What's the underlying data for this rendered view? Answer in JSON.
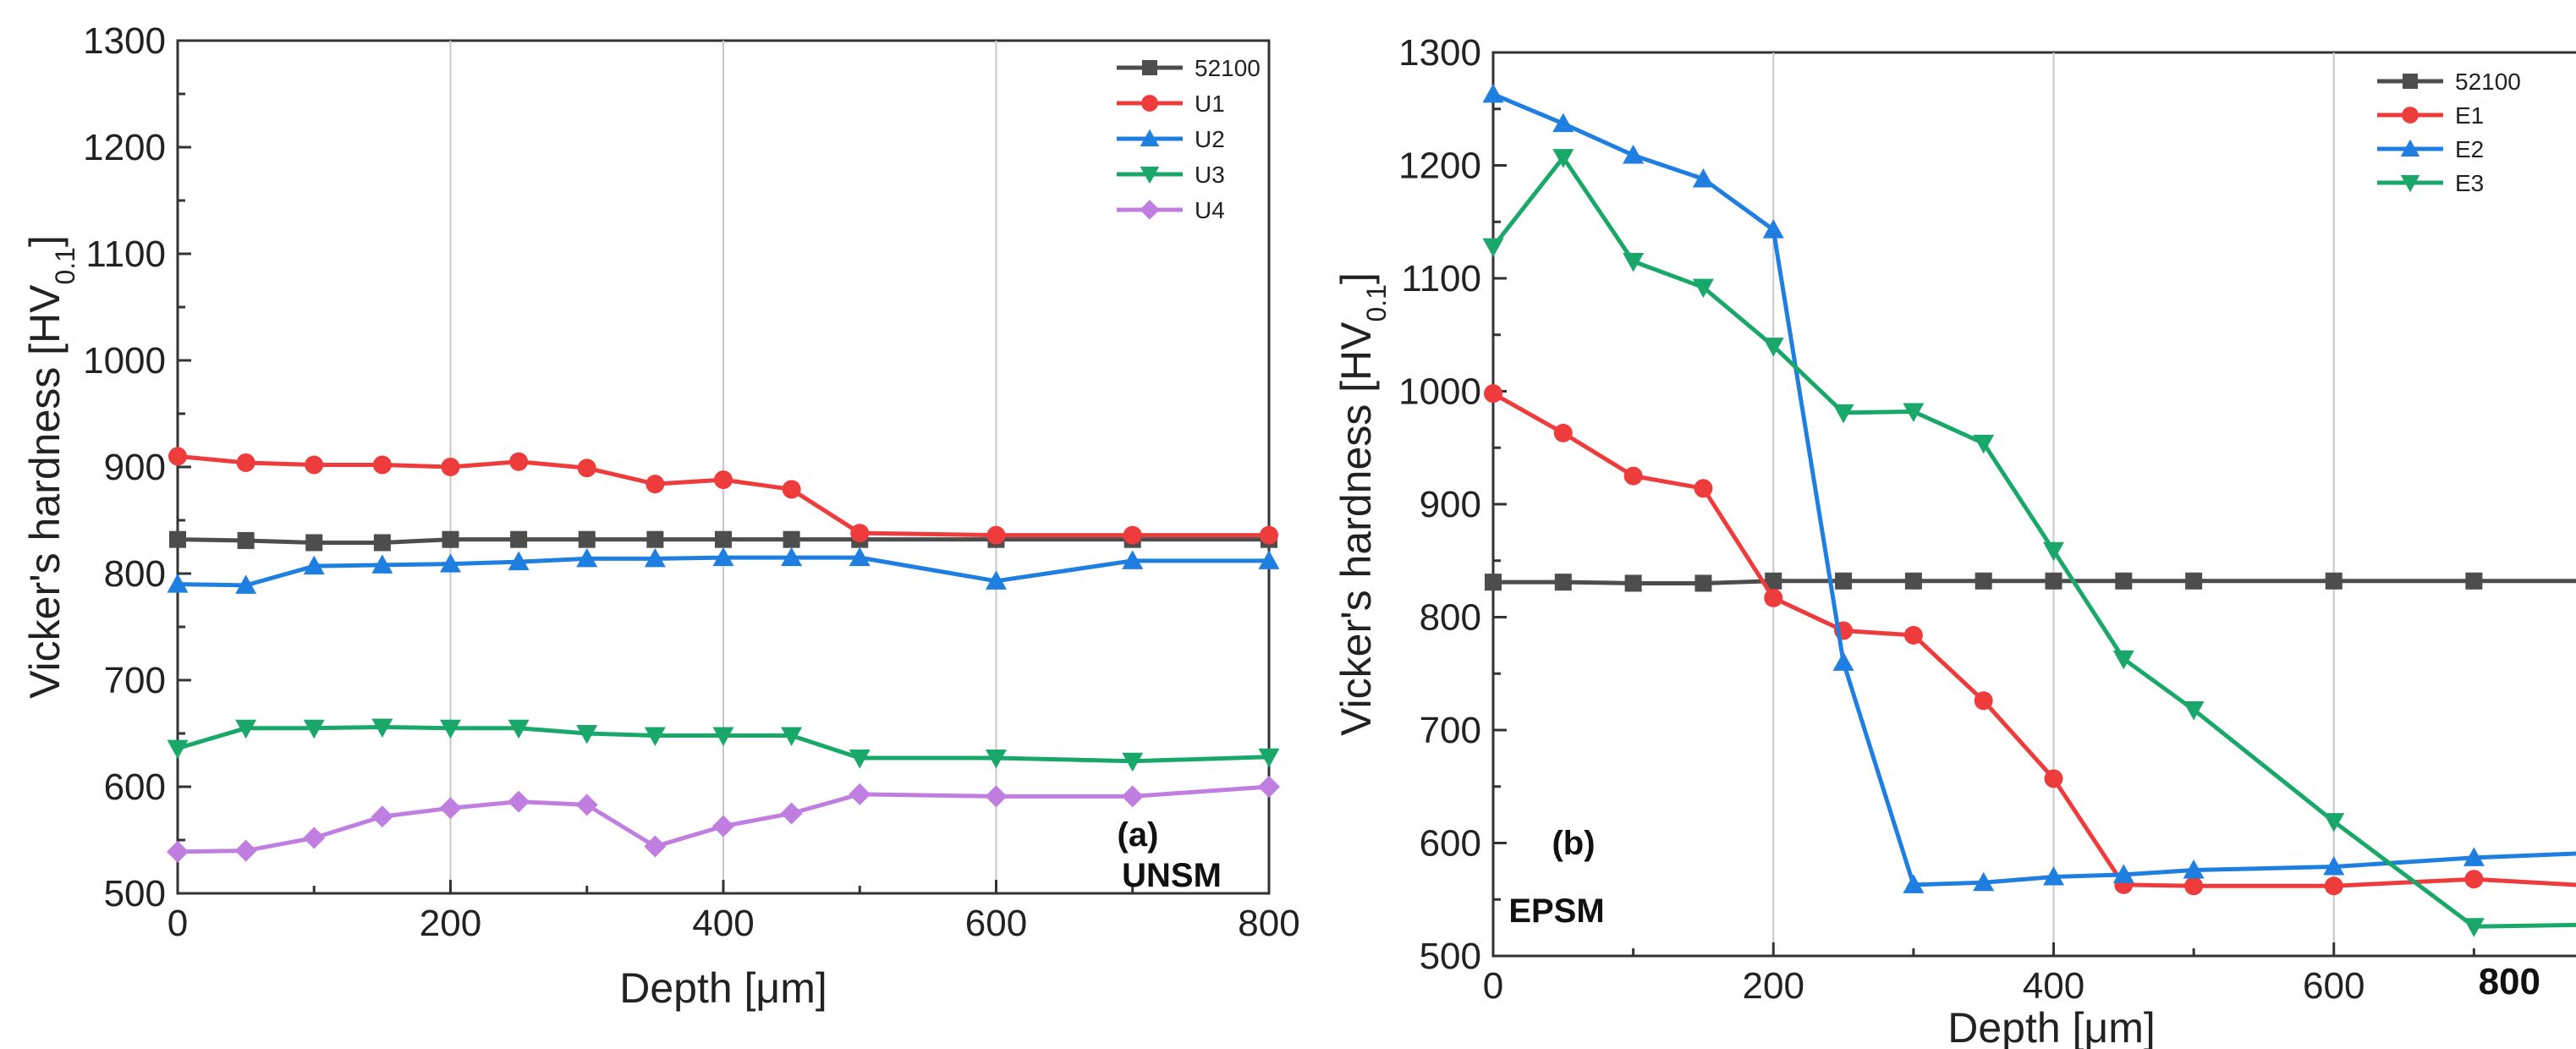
{
  "chart_data": [
    {
      "type": "line",
      "annotation_label": "(a)",
      "annotation_text": "UNSM",
      "xlabel": "Depth [μm]",
      "ylabel": "Vicker's hardness [HV",
      "ylabel_sub": "0.1",
      "ylabel_end": "]",
      "xlim": [
        0,
        800
      ],
      "ylim": [
        500,
        1300
      ],
      "xticks": [
        0,
        200,
        400,
        600,
        800
      ],
      "yticks": [
        500,
        600,
        700,
        800,
        900,
        1000,
        1100,
        1200,
        1300
      ],
      "grid": "vertical",
      "legend_position": "top-right",
      "series": [
        {
          "name": "52100",
          "color": "#4d4d4d",
          "marker": "square",
          "x": [
            0,
            50,
            100,
            150,
            200,
            250,
            300,
            350,
            400,
            450,
            500,
            600,
            700,
            800
          ],
          "y": [
            832,
            831,
            829,
            829,
            832,
            832,
            832,
            832,
            832,
            832,
            832,
            832,
            832,
            832
          ]
        },
        {
          "name": "U1",
          "color": "#ee3b3b",
          "marker": "circle",
          "x": [
            0,
            50,
            100,
            150,
            200,
            250,
            300,
            350,
            400,
            450,
            500,
            600,
            700,
            800
          ],
          "y": [
            910,
            904,
            902,
            902,
            900,
            905,
            899,
            884,
            888,
            879,
            838,
            836,
            836,
            836
          ]
        },
        {
          "name": "U2",
          "color": "#1e7fe0",
          "marker": "triangle-up",
          "x": [
            0,
            50,
            100,
            150,
            200,
            250,
            300,
            350,
            400,
            450,
            500,
            600,
            700,
            800
          ],
          "y": [
            790,
            789,
            807,
            808,
            809,
            811,
            814,
            814,
            815,
            815,
            815,
            793,
            812,
            812
          ]
        },
        {
          "name": "U3",
          "color": "#1aa86a",
          "marker": "triangle-down",
          "x": [
            0,
            50,
            100,
            150,
            200,
            250,
            300,
            350,
            400,
            450,
            500,
            600,
            700,
            800
          ],
          "y": [
            636,
            655,
            655,
            656,
            655,
            655,
            650,
            648,
            648,
            648,
            627,
            627,
            624,
            628
          ]
        },
        {
          "name": "U4",
          "color": "#c07ee0",
          "marker": "diamond",
          "x": [
            0,
            50,
            100,
            150,
            200,
            250,
            300,
            350,
            400,
            450,
            500,
            600,
            700,
            800
          ],
          "y": [
            539,
            540,
            552,
            572,
            580,
            586,
            583,
            544,
            563,
            575,
            593,
            591,
            591,
            600
          ]
        }
      ]
    },
    {
      "type": "line",
      "annotation_label": "(b)",
      "annotation_text": "EPSM",
      "xlabel": "Depth [μm]",
      "ylabel": "Vicker's hardness [HV",
      "ylabel_sub": "0.1",
      "ylabel_end": "]",
      "xlim": [
        0,
        800
      ],
      "ylim": [
        500,
        1300
      ],
      "xticks": [
        0,
        200,
        400,
        600
      ],
      "yticks": [
        500,
        600,
        700,
        800,
        900,
        1000,
        1100,
        1200,
        1300
      ],
      "edge_label": "800",
      "grid": "vertical",
      "legend_position": "top-right",
      "series": [
        {
          "name": "52100",
          "color": "#4d4d4d",
          "marker": "square",
          "x": [
            0,
            50,
            100,
            150,
            200,
            250,
            300,
            350,
            400,
            450,
            500,
            600,
            700,
            800
          ],
          "y": [
            831,
            831,
            830,
            830,
            832,
            832,
            832,
            832,
            832,
            832,
            832,
            832,
            832,
            832
          ]
        },
        {
          "name": "E1",
          "color": "#ee3b3b",
          "marker": "circle",
          "x": [
            0,
            50,
            100,
            150,
            200,
            250,
            300,
            350,
            400,
            450,
            500,
            600,
            700,
            800
          ],
          "y": [
            998,
            963,
            925,
            914,
            817,
            788,
            784,
            726,
            657,
            563,
            562,
            562,
            568,
            561
          ]
        },
        {
          "name": "E2",
          "color": "#1e7fe0",
          "marker": "triangle-up",
          "x": [
            0,
            50,
            100,
            150,
            200,
            250,
            300,
            350,
            400,
            450,
            500,
            600,
            700,
            800
          ],
          "y": [
            1263,
            1237,
            1209,
            1188,
            1143,
            760,
            563,
            565,
            570,
            572,
            576,
            579,
            587,
            592
          ]
        },
        {
          "name": "E3",
          "color": "#1aa86a",
          "marker": "triangle-down",
          "x": [
            0,
            50,
            100,
            150,
            200,
            250,
            300,
            350,
            400,
            450,
            500,
            600,
            700,
            800
          ],
          "y": [
            1128,
            1207,
            1115,
            1092,
            1040,
            981,
            982,
            954,
            859,
            763,
            718,
            619,
            526,
            528
          ]
        }
      ]
    }
  ]
}
